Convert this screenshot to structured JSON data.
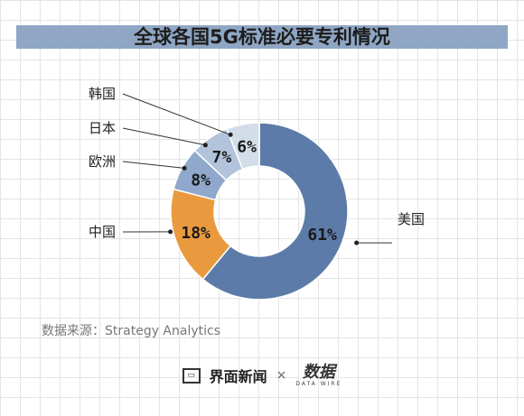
{
  "title": "全球各国5G标准必要专利情况",
  "source": "数据来源：Strategy Analytics",
  "footer": {
    "brand1": "界面新闻",
    "separator": "×",
    "brand2": "数据",
    "brand2_sub": "DATA WIRE"
  },
  "chart_data": {
    "type": "pie",
    "donut": true,
    "unit": "%",
    "slices": [
      {
        "label": "美国",
        "value": 61,
        "value_label": "61%",
        "color": "#5c7ba8",
        "text_color": "#1a1a1a"
      },
      {
        "label": "中国",
        "value": 18,
        "value_label": "18%",
        "color": "#ea9a3e",
        "text_color": "#1a1a1a"
      },
      {
        "label": "欧洲",
        "value": 8,
        "value_label": "8%",
        "color": "#8fa8cb",
        "text_color": "#1a1a1a"
      },
      {
        "label": "日本",
        "value": 7,
        "value_label": "7%",
        "color": "#b2c3dc",
        "text_color": "#1a1a1a"
      },
      {
        "label": "韩国",
        "value": 6,
        "value_label": "6%",
        "color": "#d3dde9",
        "text_color": "#1a1a1a"
      }
    ]
  }
}
